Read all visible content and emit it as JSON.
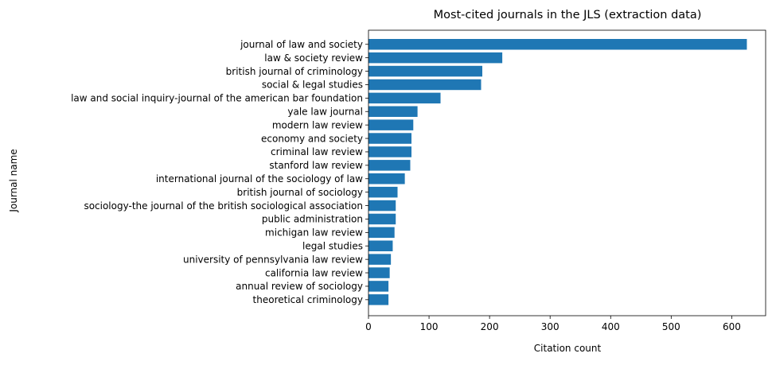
{
  "chart_data": {
    "type": "bar",
    "orientation": "horizontal",
    "title": "Most-cited journals in the JLS (extraction data)",
    "xlabel": "Citation count",
    "ylabel": "Journal name",
    "xlim": [
      0,
      656
    ],
    "xticks": [
      0,
      100,
      200,
      300,
      400,
      500,
      600
    ],
    "xtick_labels": [
      "0",
      "100",
      "200",
      "300",
      "400",
      "500",
      "600"
    ],
    "grid": false,
    "bar_color": "#1f77b4",
    "categories": [
      "journal of law and society",
      "law & society review",
      "british journal of criminology",
      "social & legal studies",
      "law and social inquiry-journal of the american bar foundation",
      "yale law journal",
      "modern law review",
      "economy and society",
      "criminal law review",
      "stanford law review",
      "international journal of the sociology of law",
      "british journal of sociology",
      "sociology-the journal of the british sociological association",
      "public administration",
      "michigan law review",
      "legal studies",
      "university of pennsylvania law review",
      "california law review",
      "annual review of sociology",
      "theoretical criminology"
    ],
    "values": [
      625,
      221,
      188,
      186,
      119,
      81,
      74,
      71,
      71,
      69,
      60,
      48,
      45,
      45,
      43,
      40,
      37,
      35,
      33,
      33
    ]
  }
}
